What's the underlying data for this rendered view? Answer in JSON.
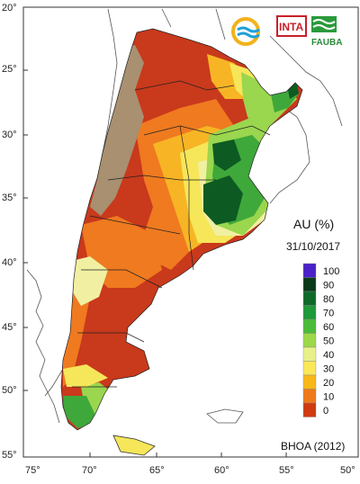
{
  "title": "AU (%)",
  "date": "31/10/2017",
  "source": "BHOA (2012)",
  "logos": [
    {
      "icon": "wave-circle-logo-icon",
      "text": ""
    },
    {
      "icon": "inta-logo-icon",
      "text": "INTA"
    },
    {
      "icon": "fauba-logo-icon",
      "text": "FAUBA"
    }
  ],
  "lat_ticks": [
    "20°",
    "25°",
    "30°",
    "35°",
    "40°",
    "45°",
    "50°",
    "55°"
  ],
  "lon_ticks": [
    "75°",
    "70°",
    "65°",
    "60°",
    "55°",
    "50°"
  ],
  "legend": {
    "labels": [
      "100",
      "90",
      "80",
      "70",
      "60",
      "50",
      "40",
      "30",
      "20",
      "10",
      "0"
    ],
    "colors": [
      "#4a22c8",
      "#0a3a1a",
      "#0f6a2a",
      "#1f9a3a",
      "#4cbb3a",
      "#9cd84a",
      "#e8f08a",
      "#f8e85a",
      "#f8b81a",
      "#f07a1a",
      "#d03a10"
    ]
  },
  "map_colors": {
    "mountain": "#a89070",
    "dry_red": "#c9391c",
    "orange": "#ef7a20",
    "yellow_orange": "#f7b525",
    "yellow": "#f6e65a",
    "pale": "#f1f0a2",
    "light_green": "#9ad64e",
    "green": "#3fa83a",
    "dark_green": "#0d5a22"
  }
}
